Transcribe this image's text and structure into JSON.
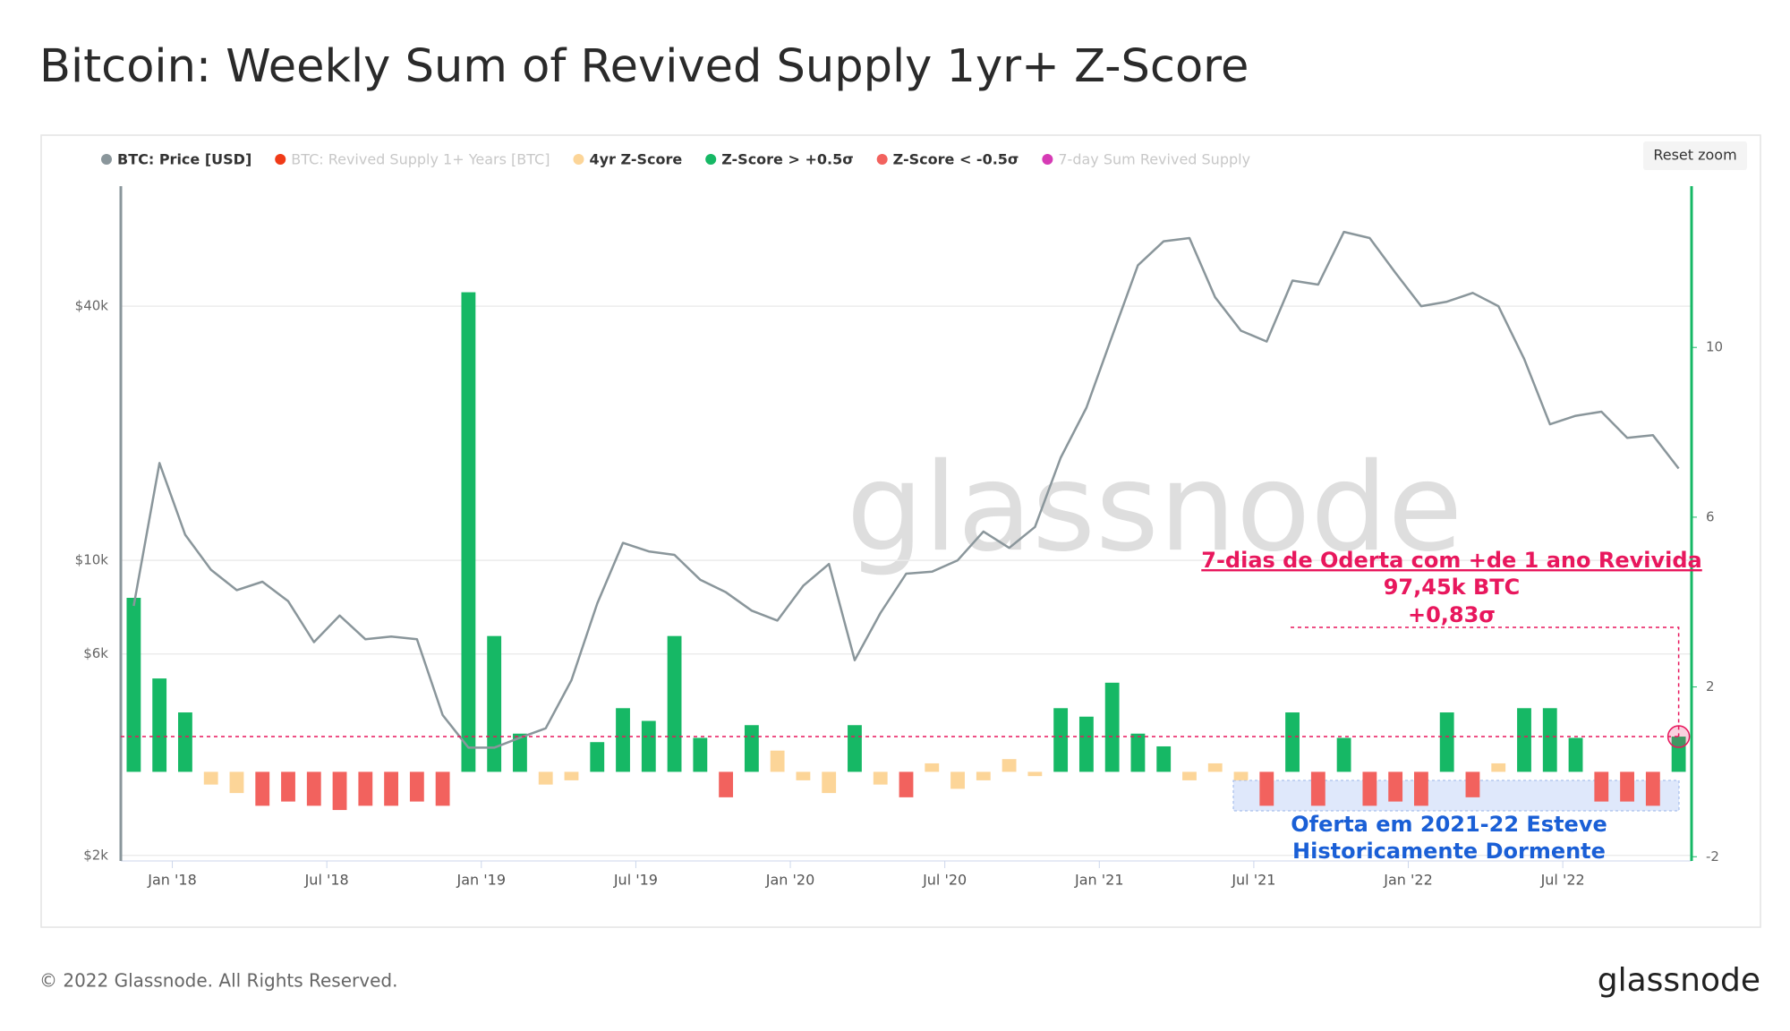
{
  "chart_data": {
    "type": "price-zscore",
    "title": "Bitcoin: Weekly Sum of Revived Supply 1yr+ Z-Score",
    "watermark": "glassnode",
    "x": [
      "2017-11",
      "2017-12",
      "2018-01",
      "2018-02",
      "2018-03",
      "2018-04",
      "2018-05",
      "2018-06",
      "2018-07",
      "2018-08",
      "2018-09",
      "2018-10",
      "2018-11",
      "2018-12",
      "2019-01",
      "2019-02",
      "2019-03",
      "2019-04",
      "2019-05",
      "2019-06",
      "2019-07",
      "2019-08",
      "2019-09",
      "2019-10",
      "2019-11",
      "2019-12",
      "2020-01",
      "2020-02",
      "2020-03",
      "2020-04",
      "2020-05",
      "2020-06",
      "2020-07",
      "2020-08",
      "2020-09",
      "2020-10",
      "2020-11",
      "2020-12",
      "2021-01",
      "2021-02",
      "2021-03",
      "2021-04",
      "2021-05",
      "2021-06",
      "2021-07",
      "2021-08",
      "2021-09",
      "2021-10",
      "2021-11",
      "2021-12",
      "2022-01",
      "2022-02",
      "2022-03",
      "2022-04",
      "2022-05",
      "2022-06",
      "2022-07",
      "2022-08",
      "2022-09",
      "2022-10",
      "2022-11"
    ],
    "xlim": [
      "2017-11",
      "2022-12"
    ],
    "xticks": [
      {
        "value": "2018-01",
        "label": "Jan '18"
      },
      {
        "value": "2018-07",
        "label": "Jul '18"
      },
      {
        "value": "2019-01",
        "label": "Jan '19"
      },
      {
        "value": "2019-07",
        "label": "Jul '19"
      },
      {
        "value": "2020-01",
        "label": "Jan '20"
      },
      {
        "value": "2020-07",
        "label": "Jul '20"
      },
      {
        "value": "2021-01",
        "label": "Jan '21"
      },
      {
        "value": "2021-07",
        "label": "Jul '21"
      },
      {
        "value": "2022-01",
        "label": "Jan '22"
      },
      {
        "value": "2022-07",
        "label": "Jul '22"
      }
    ],
    "ylim": [
      1940,
      77000
    ],
    "log_scale": true,
    "yticks": [
      {
        "value": 2000,
        "label": "$2k"
      },
      {
        "value": 6000,
        "label": "$6k"
      },
      {
        "value": 10000,
        "label": "$10k"
      },
      {
        "value": 40000,
        "label": "$40k"
      }
    ],
    "y2lim": [
      -2.1,
      13.8
    ],
    "y2ticks": [
      -2,
      2,
      6,
      10
    ],
    "grid": true,
    "series": [
      {
        "name": "BTC: Price [USD]",
        "color": "#8a969b",
        "values": [
          7800,
          17000,
          11500,
          9500,
          8500,
          8900,
          8000,
          6400,
          7400,
          6500,
          6600,
          6500,
          4300,
          3600,
          3600,
          3800,
          4000,
          5200,
          7900,
          11000,
          10500,
          10300,
          9000,
          8400,
          7600,
          7200,
          8700,
          9800,
          5800,
          7500,
          9300,
          9400,
          10000,
          11700,
          10700,
          12000,
          17500,
          23000,
          34000,
          50000,
          57000,
          58000,
          42000,
          35000,
          33000,
          46000,
          45000,
          60000,
          58000,
          48000,
          40000,
          41000,
          43000,
          40000,
          30000,
          21000,
          22000,
          22500,
          19500,
          19800,
          16500
        ]
      },
      {
        "name": "BTC: Revived Supply 1+ Years [BTC]",
        "color": "#f03a17",
        "hidden": true
      },
      {
        "name": "4yr Z-Score",
        "color": "#fcd598",
        "axis": "y2",
        "values": [
          4.1,
          2.2,
          1.4,
          -0.3,
          -0.5,
          -0.8,
          -0.7,
          -0.8,
          -0.9,
          -0.8,
          -0.8,
          -0.7,
          -0.8,
          11.3,
          3.2,
          0.9,
          -0.3,
          -0.2,
          0.7,
          1.5,
          1.2,
          3.2,
          0.8,
          -0.6,
          1.1,
          0.5,
          -0.2,
          -0.5,
          1.1,
          -0.3,
          -0.6,
          0.2,
          -0.4,
          -0.2,
          0.3,
          -0.1,
          1.5,
          1.3,
          2.1,
          0.9,
          0.6,
          -0.2,
          0.2,
          -0.2,
          -0.8,
          1.4,
          -0.8,
          0.8,
          -0.8,
          -0.7,
          -0.8,
          1.4,
          -0.6,
          0.2,
          1.5,
          1.5,
          0.8,
          -0.7,
          -0.7,
          -0.8,
          0.83
        ]
      },
      {
        "name": "Z-Score > +0.5σ",
        "color": "#16b865",
        "threshold": 0.5
      },
      {
        "name": "Z-Score < -0.5σ",
        "color": "#f2625e",
        "threshold": -0.5
      },
      {
        "name": "7-day Sum Revived Supply",
        "color": "#d63bb5",
        "hidden": true
      }
    ],
    "annotations": {
      "callout": [
        "7-dias de Oderta com +de 1 ano Revivida",
        "97,45k BTC",
        "+0,83σ"
      ],
      "dormant": [
        "Oferta em 2021-22 Esteve",
        "Historicamente Dormente"
      ]
    }
  },
  "controls": {
    "reset_zoom": "Reset zoom"
  },
  "footer": {
    "copyright": "© 2022 Glassnode. All Rights Reserved.",
    "logo": "glassnode"
  }
}
